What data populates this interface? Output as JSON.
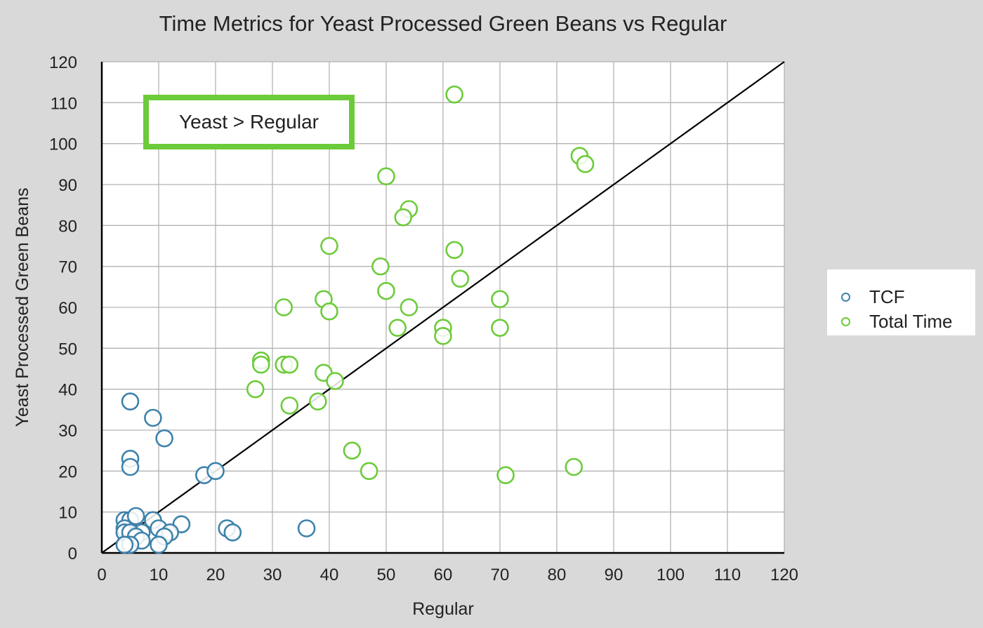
{
  "chart_data": {
    "type": "scatter",
    "title": "Time Metrics for Yeast Processed Green Beans vs Regular",
    "xlabel": "Regular",
    "ylabel": "Yeast Processed Green Beans",
    "xlim": [
      0,
      120
    ],
    "ylim": [
      0,
      120
    ],
    "x_ticks": [
      "0",
      "10",
      "20",
      "30",
      "40",
      "50",
      "60",
      "70",
      "80",
      "90",
      "100",
      "110",
      "120"
    ],
    "y_ticks": [
      "0",
      "10",
      "20",
      "30",
      "40",
      "50",
      "60",
      "70",
      "80",
      "90",
      "100",
      "110",
      "120"
    ],
    "grid": true,
    "legend_position": "right",
    "reference_line": {
      "type": "y=x",
      "color": "#000000"
    },
    "annotation": {
      "text": "Yeast > Regular",
      "border_color": "#6ccb3a"
    },
    "series": [
      {
        "name": "TCF",
        "color": "#3e82ab",
        "points": [
          [
            5,
            37
          ],
          [
            9,
            33
          ],
          [
            11,
            28
          ],
          [
            5,
            23
          ],
          [
            5,
            21
          ],
          [
            18,
            19
          ],
          [
            20,
            20
          ],
          [
            4,
            8
          ],
          [
            5,
            8
          ],
          [
            6,
            9
          ],
          [
            9,
            8
          ],
          [
            4,
            6
          ],
          [
            10,
            6
          ],
          [
            7,
            5
          ],
          [
            14,
            7
          ],
          [
            12,
            5
          ],
          [
            4,
            5
          ],
          [
            5,
            5
          ],
          [
            6,
            4
          ],
          [
            11,
            4
          ],
          [
            7,
            3
          ],
          [
            5,
            2
          ],
          [
            4,
            2
          ],
          [
            10,
            2
          ],
          [
            22,
            6
          ],
          [
            23,
            5
          ],
          [
            36,
            6
          ]
        ]
      },
      {
        "name": "Total Time",
        "color": "#6ccb3a",
        "points": [
          [
            62,
            112
          ],
          [
            84,
            97
          ],
          [
            85,
            95
          ],
          [
            50,
            92
          ],
          [
            54,
            84
          ],
          [
            53,
            82
          ],
          [
            40,
            75
          ],
          [
            62,
            74
          ],
          [
            49,
            70
          ],
          [
            63,
            67
          ],
          [
            50,
            64
          ],
          [
            39,
            62
          ],
          [
            70,
            62
          ],
          [
            32,
            60
          ],
          [
            40,
            59
          ],
          [
            54,
            60
          ],
          [
            52,
            55
          ],
          [
            60,
            55
          ],
          [
            70,
            55
          ],
          [
            60,
            53
          ],
          [
            28,
            47
          ],
          [
            28,
            46
          ],
          [
            32,
            46
          ],
          [
            33,
            46
          ],
          [
            39,
            44
          ],
          [
            41,
            42
          ],
          [
            27,
            40
          ],
          [
            33,
            36
          ],
          [
            38,
            37
          ],
          [
            44,
            25
          ],
          [
            47,
            20
          ],
          [
            71,
            19
          ],
          [
            83,
            21
          ]
        ]
      }
    ]
  }
}
